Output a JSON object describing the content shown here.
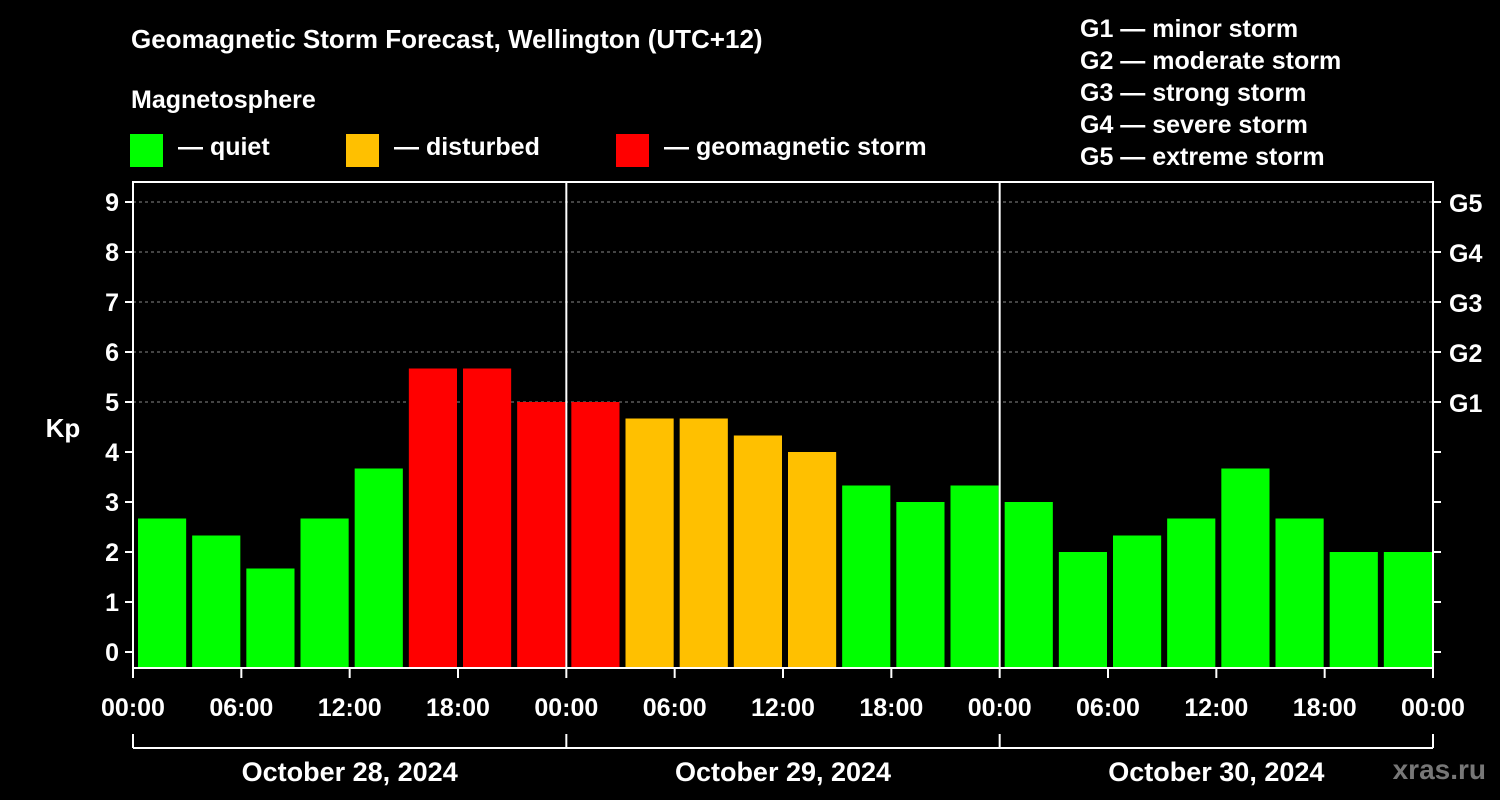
{
  "title": "Geomagnetic Storm Forecast, Wellington (UTC+12)",
  "subtitle": "Magnetosphere",
  "legend": [
    {
      "label": "— quiet",
      "color": "#00ff00"
    },
    {
      "label": "— disturbed",
      "color": "#ffc000"
    },
    {
      "label": "— geomagnetic storm",
      "color": "#ff0000"
    }
  ],
  "storm_scale": [
    "G1 — minor storm",
    "G2 — moderate storm",
    "G3 — strong storm",
    "G4 — severe storm",
    "G5 — extreme storm"
  ],
  "watermark": "xras.ru",
  "chart_data": {
    "type": "bar",
    "title": "Geomagnetic Storm Forecast, Wellington (UTC+12)",
    "ylabel": "Kp",
    "ylim": [
      0,
      9
    ],
    "yticks": [
      "0",
      "1",
      "2",
      "3",
      "4",
      "5",
      "6",
      "7",
      "8",
      "9"
    ],
    "right_ticks": [
      {
        "kp": 5,
        "label": "G1"
      },
      {
        "kp": 6,
        "label": "G2"
      },
      {
        "kp": 7,
        "label": "G3"
      },
      {
        "kp": 8,
        "label": "G4"
      },
      {
        "kp": 9,
        "label": "G5"
      }
    ],
    "xticks": [
      "00:00",
      "06:00",
      "12:00",
      "18:00",
      "00:00",
      "06:00",
      "12:00",
      "18:00",
      "00:00",
      "06:00",
      "12:00",
      "18:00",
      "00:00"
    ],
    "days": [
      "October 28, 2024",
      "October 29, 2024",
      "October 30, 2024"
    ],
    "interval_hours": 3,
    "values": [
      2.67,
      2.33,
      1.67,
      2.67,
      3.67,
      5.67,
      5.67,
      5.0,
      5.0,
      4.67,
      4.67,
      4.33,
      4.0,
      3.33,
      3.0,
      3.33,
      3.0,
      2.0,
      2.33,
      2.67,
      3.67,
      2.67,
      2.0,
      2.0
    ],
    "colors": {
      "quiet": "#00ff00",
      "disturbed": "#ffc000",
      "storm": "#ff0000"
    },
    "grid": true
  }
}
